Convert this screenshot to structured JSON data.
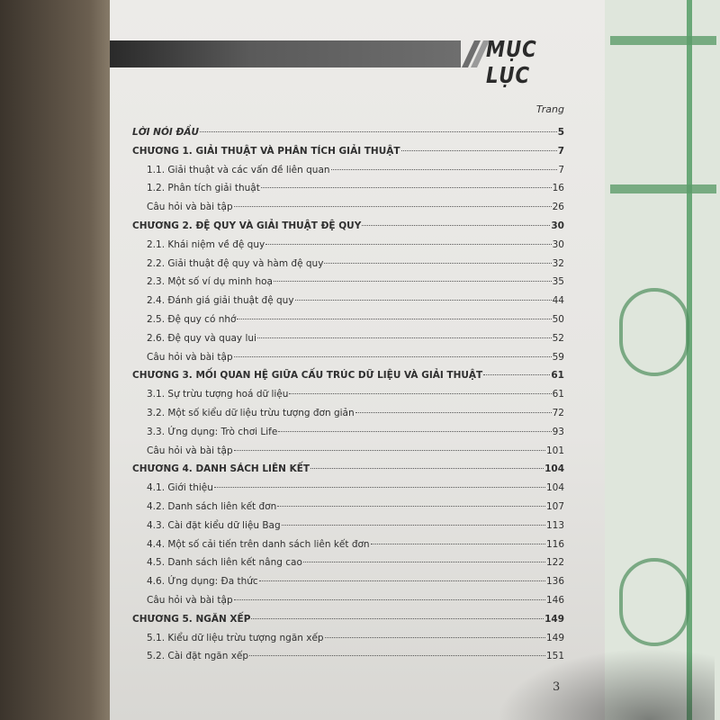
{
  "header": {
    "title": "MỤC LỤC",
    "page_column_label": "Trang"
  },
  "toc": [
    {
      "type": "ch",
      "label": "LỜI NÓI ĐẦU",
      "page": "5",
      "italic": true
    },
    {
      "type": "ch",
      "label": "CHƯƠNG 1. GIẢI THUẬT VÀ PHÂN TÍCH GIẢI THUẬT",
      "page": "7"
    },
    {
      "type": "sec",
      "label": "1.1. Giải thuật và các vấn đề liên quan",
      "page": "7"
    },
    {
      "type": "sec",
      "label": "1.2. Phân tích giải thuật",
      "page": "16"
    },
    {
      "type": "sec",
      "label": "Câu hỏi và bài tập",
      "page": "26"
    },
    {
      "type": "ch",
      "label": "CHƯƠNG 2. ĐỆ QUY VÀ GIẢI THUẬT ĐỆ QUY",
      "page": "30"
    },
    {
      "type": "sec",
      "label": "2.1. Khái niệm về đệ quy",
      "page": "30"
    },
    {
      "type": "sec",
      "label": "2.2. Giải thuật đệ quy và hàm đệ quy",
      "page": "32"
    },
    {
      "type": "sec",
      "label": "2.3. Một số ví dụ minh hoạ",
      "page": "35"
    },
    {
      "type": "sec",
      "label": "2.4. Đánh giá giải thuật đệ quy",
      "page": "44"
    },
    {
      "type": "sec",
      "label": "2.5. Đệ quy có nhớ",
      "page": "50"
    },
    {
      "type": "sec",
      "label": "2.6. Đệ quy và quay lui",
      "page": "52"
    },
    {
      "type": "sec",
      "label": "Câu hỏi và bài tập",
      "page": "59"
    },
    {
      "type": "ch",
      "label": "CHƯƠNG 3. MỐI QUAN HỆ GIỮA CẤU TRÚC DỮ LIỆU VÀ GIẢI THUẬT",
      "page": "61"
    },
    {
      "type": "sec",
      "label": "3.1. Sự trừu tượng hoá dữ liệu",
      "page": "61"
    },
    {
      "type": "sec",
      "label": "3.2. Một số kiểu dữ liệu trừu tượng đơn giản",
      "page": "72"
    },
    {
      "type": "sec",
      "label": "3.3. Ứng dụng: Trò chơi Life",
      "page": "93"
    },
    {
      "type": "sec",
      "label": "Câu hỏi và bài tập",
      "page": "101"
    },
    {
      "type": "ch",
      "label": "CHƯƠNG 4. DANH SÁCH LIÊN KẾT",
      "page": "104"
    },
    {
      "type": "sec",
      "label": "4.1. Giới thiệu",
      "page": "104"
    },
    {
      "type": "sec",
      "label": "4.2. Danh sách liên kết đơn",
      "page": "107"
    },
    {
      "type": "sec",
      "label": "4.3. Cài đặt kiểu dữ liệu Bag",
      "page": "113"
    },
    {
      "type": "sec",
      "label": "4.4. Một số cải tiến trên danh sách liên kết đơn",
      "page": "116"
    },
    {
      "type": "sec",
      "label": "4.5. Danh sách liên kết nâng cao",
      "page": "122"
    },
    {
      "type": "sec",
      "label": "4.6. Ứng dụng: Đa thức",
      "page": "136"
    },
    {
      "type": "sec",
      "label": "Câu hỏi và bài tập",
      "page": "146"
    },
    {
      "type": "ch",
      "label": "CHƯƠNG 5. NGĂN XẾP",
      "page": "149"
    },
    {
      "type": "sec",
      "label": "5.1. Kiểu dữ liệu trừu tượng ngăn xếp",
      "page": "149"
    },
    {
      "type": "sec",
      "label": "5.2. Cài đặt ngăn xếp",
      "page": "151"
    }
  ],
  "footer": {
    "page_number": "3"
  }
}
